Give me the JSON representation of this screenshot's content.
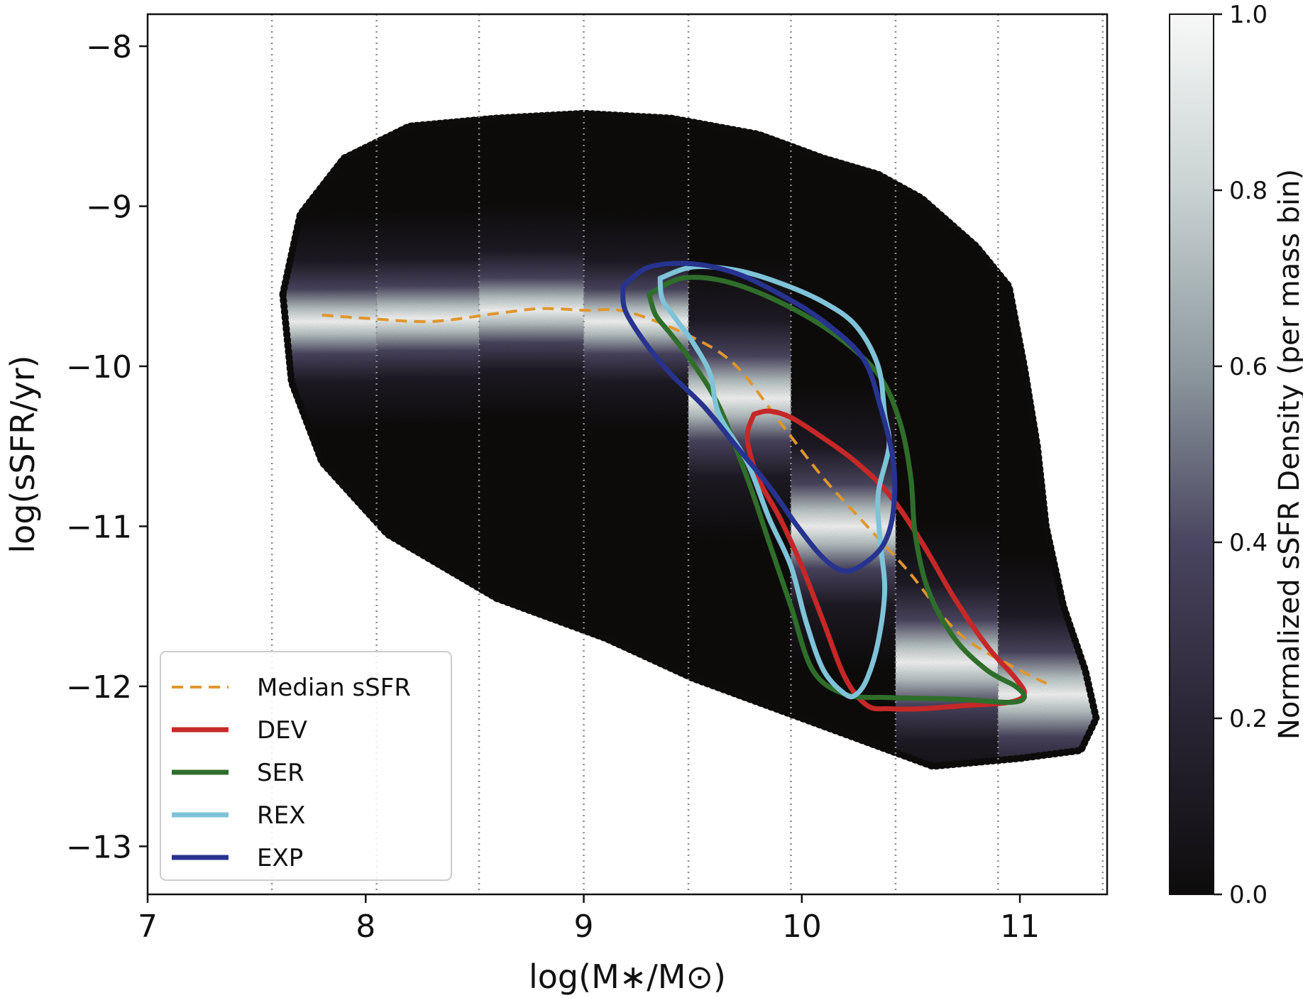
{
  "chart_data": {
    "type": "scatter",
    "xlabel": "log(M∗/M⊙)",
    "ylabel": "log(sSFR/yr)",
    "xlim": [
      7,
      11.4
    ],
    "ylim": [
      -13.3,
      -7.8
    ],
    "xticks": [
      7,
      8,
      9,
      10,
      11
    ],
    "xtick_labels": [
      "7",
      "8",
      "9",
      "10",
      "11"
    ],
    "yticks": [
      -8,
      -9,
      -10,
      -11,
      -12,
      -13
    ],
    "ytick_labels": [
      "−8",
      "−9",
      "−10",
      "−11",
      "−12",
      "−13"
    ],
    "mass_bin_edges": [
      7.57,
      8.05,
      8.52,
      9.0,
      9.48,
      9.95,
      10.43,
      10.9,
      11.38
    ],
    "grid": "vertical dotted lines at mass bin edges",
    "colorbar": {
      "label": "Normalized sSFR Density (per mass bin)",
      "range": [
        0.0,
        1.0
      ],
      "ticks": [
        "0.0",
        "0.2",
        "0.4",
        "0.6",
        "0.8",
        "1.0"
      ],
      "colors": [
        "#0d0c0b",
        "#2a2535",
        "#4a4560",
        "#8e9aa0",
        "#c9d2d2",
        "#f7f8f7"
      ]
    },
    "density_background": {
      "description": "per-bin normalized density of galaxies; bright ridge follows median sSFR",
      "bin_peak_ssfr": [
        -9.72,
        -9.72,
        -9.7,
        -9.65,
        -9.72,
        -10.2,
        -11.0,
        -11.85,
        -12.05
      ]
    },
    "series": [
      {
        "name": "Median sSFR",
        "style": "dashed",
        "color": "#e0962e",
        "x": [
          7.8,
          8.0,
          8.3,
          8.6,
          8.8,
          9.0,
          9.2,
          9.5,
          9.7,
          9.9,
          10.1,
          10.3,
          10.5,
          10.67,
          10.8,
          11.0,
          11.15
        ],
        "y": [
          -9.68,
          -9.7,
          -9.72,
          -9.67,
          -9.64,
          -9.65,
          -9.66,
          -9.82,
          -10.0,
          -10.35,
          -10.7,
          -11.0,
          -11.3,
          -11.6,
          -11.75,
          -11.9,
          -12.0
        ]
      },
      {
        "name": "DEV",
        "style": "solid",
        "color": "#c62828",
        "x": [
          9.78,
          9.85,
          9.95,
          10.1,
          10.25,
          10.4,
          10.55,
          10.7,
          10.85,
          10.98,
          11.02,
          10.95,
          10.75,
          10.55,
          10.4,
          10.3,
          10.2,
          10.1,
          10.0,
          9.9,
          9.8,
          9.75,
          9.78
        ],
        "y": [
          -10.3,
          -10.28,
          -10.32,
          -10.45,
          -10.6,
          -10.8,
          -11.1,
          -11.45,
          -11.75,
          -11.95,
          -12.05,
          -12.1,
          -12.12,
          -12.14,
          -12.14,
          -12.12,
          -11.95,
          -11.6,
          -11.25,
          -10.95,
          -10.7,
          -10.45,
          -10.3
        ]
      },
      {
        "name": "SER",
        "style": "solid",
        "color": "#2f6e2a",
        "x": [
          9.3,
          9.45,
          9.65,
          9.9,
          10.15,
          10.35,
          10.45,
          10.5,
          10.52,
          10.58,
          10.7,
          10.85,
          10.98,
          11.02,
          10.95,
          10.7,
          10.4,
          10.2,
          10.05,
          9.95,
          9.85,
          9.75,
          9.62,
          9.5,
          9.4,
          9.33,
          9.3
        ],
        "y": [
          -9.55,
          -9.45,
          -9.47,
          -9.6,
          -9.8,
          -10.05,
          -10.35,
          -10.7,
          -11.05,
          -11.4,
          -11.7,
          -11.9,
          -12.0,
          -12.07,
          -12.1,
          -12.08,
          -12.07,
          -12.05,
          -11.9,
          -11.5,
          -11.1,
          -10.7,
          -10.25,
          -9.98,
          -9.8,
          -9.68,
          -9.55
        ]
      },
      {
        "name": "REX",
        "style": "solid",
        "color": "#7fc3d8",
        "x": [
          9.35,
          9.5,
          9.7,
          9.9,
          10.1,
          10.25,
          10.35,
          10.38,
          10.4,
          10.35,
          10.36,
          10.38,
          10.35,
          10.3,
          10.25,
          10.2,
          10.1,
          10.02,
          9.95,
          9.85,
          9.75,
          9.62,
          9.58,
          9.5,
          9.42,
          9.36,
          9.35
        ],
        "y": [
          -9.45,
          -9.38,
          -9.4,
          -9.48,
          -9.6,
          -9.75,
          -10.0,
          -10.3,
          -10.5,
          -10.8,
          -11.1,
          -11.4,
          -11.72,
          -11.95,
          -12.05,
          -12.05,
          -11.9,
          -11.6,
          -11.25,
          -10.95,
          -10.6,
          -10.3,
          -10.05,
          -9.85,
          -9.7,
          -9.58,
          -9.45
        ]
      },
      {
        "name": "EXP",
        "style": "solid",
        "color": "#27338f",
        "x": [
          9.18,
          9.3,
          9.5,
          9.7,
          9.9,
          10.1,
          10.28,
          10.36,
          10.42,
          10.42,
          10.38,
          10.3,
          10.2,
          10.1,
          9.98,
          9.85,
          9.7,
          9.55,
          9.4,
          9.28,
          9.19,
          9.18
        ],
        "y": [
          -9.5,
          -9.38,
          -9.36,
          -9.42,
          -9.55,
          -9.72,
          -9.95,
          -10.25,
          -10.6,
          -10.9,
          -11.1,
          -11.22,
          -11.28,
          -11.2,
          -11.0,
          -10.75,
          -10.5,
          -10.25,
          -10.05,
          -9.85,
          -9.65,
          -9.5
        ]
      }
    ],
    "legend": {
      "placement": "lower-left",
      "entries": [
        "Median sSFR",
        "DEV",
        "SER",
        "REX",
        "EXP"
      ]
    }
  }
}
